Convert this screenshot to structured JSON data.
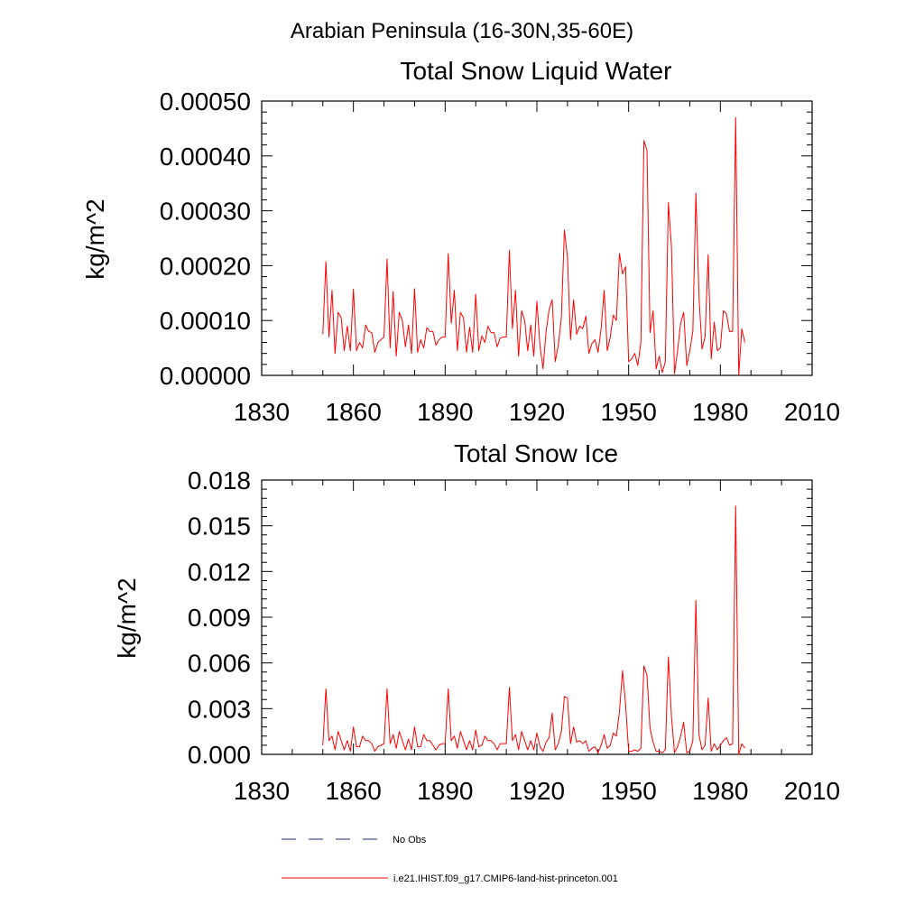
{
  "figure_title": "Arabian Peninsula (16-30N,35-60E)",
  "legend": {
    "entries": [
      {
        "label": "No Obs",
        "color": "#1f2a7a",
        "dash": true
      },
      {
        "label": "i.e21.IHIST.f09_g17.CMIP6-land-hist-princeton.001",
        "color": "#ff0000",
        "dash": false
      }
    ]
  },
  "chart_data": [
    {
      "type": "line",
      "title": "Total Snow Liquid Water",
      "ylabel": "kg/m^2",
      "xlabel": "",
      "xlim": [
        1830,
        2010
      ],
      "ylim": [
        0,
        0.0005
      ],
      "xticks": [
        "1830",
        "1860",
        "1890",
        "1920",
        "1950",
        "1980",
        "2010"
      ],
      "yticks": [
        "0.00000",
        "0.00010",
        "0.00020",
        "0.00030",
        "0.00040",
        "0.00050"
      ],
      "series": [
        {
          "name": "i.e21.IHIST.f09_g17.CMIP6-land-hist-princeton.001",
          "color": "#ff0000",
          "x_start": 1850,
          "x_step": 1,
          "values": [
            7.5e-05,
            0.000207,
            7e-05,
            0.000155,
            4e-05,
            0.000115,
            0.000105,
            4.5e-05,
            9e-05,
            4.5e-05,
            0.000157,
            4.5e-05,
            6e-05,
            5e-05,
            9.2e-05,
            8e-05,
            7.8e-05,
            4.2e-05,
            6e-05,
            6.5e-05,
            7e-05,
            0.000212,
            5e-05,
            0.000153,
            3.5e-05,
            0.000115,
            0.0001,
            5.2e-05,
            9.2e-05,
            4e-05,
            0.000158,
            4.2e-05,
            6.5e-05,
            5e-05,
            8.7e-05,
            8e-05,
            8e-05,
            5.5e-05,
            6.5e-05,
            7e-05,
            7e-05,
            0.000222,
            9.5e-05,
            0.000155,
            4.5e-05,
            0.000115,
            0.000105,
            4.2e-05,
            8.8e-05,
            4.2e-05,
            0.000148,
            4.5e-05,
            7.2e-05,
            6e-05,
            9e-05,
            7.8e-05,
            7.8e-05,
            5.2e-05,
            6.8e-05,
            7e-05,
            7e-05,
            0.000228,
            8.5e-05,
            0.000155,
            3.5e-05,
            0.000118,
            0.0001,
            4.5e-05,
            9.2e-05,
            3.5e-05,
            0.000135,
            5.5e-05,
            1.2e-05,
            8e-05,
            0.00012,
            0.000138,
            2.5e-05,
            5.5e-05,
            0.000105,
            0.000265,
            0.000215,
            6.5e-05,
            0.000138,
            7.5e-05,
            9e-05,
            8.5e-05,
            0.000108,
            4e-05,
            5.8e-05,
            6.5e-05,
            4.2e-05,
            8.5e-05,
            0.000155,
            4.5e-05,
            7e-05,
            0.00011,
            0.0001,
            0.000222,
            0.000185,
            0.000198,
            2.5e-05,
            3e-05,
            4e-05,
            1.8e-05,
            6e-05,
            0.000428,
            0.00041,
            7.8e-05,
            0.000118,
            1.2e-05,
            3.5e-05,
            5e-06,
            2.5e-05,
            0.000315,
            0.000235,
            3e-06,
            4.5e-05,
            9.5e-05,
            0.000115,
            1.8e-05,
            4.5e-05,
            8e-05,
            0.000332,
            0.000145,
            4.8e-05,
            7e-05,
            0.00022,
            3e-05,
            9.7e-05,
            4.5e-05,
            5e-05,
            0.000118,
            0.000112,
            8e-05,
            8e-05,
            0.00047,
            0.0,
            8.5e-05,
            6e-05
          ]
        }
      ]
    },
    {
      "type": "line",
      "title": "Total Snow Ice",
      "ylabel": "kg/m^2",
      "xlabel": "",
      "xlim": [
        1830,
        2010
      ],
      "ylim": [
        0,
        0.018
      ],
      "xticks": [
        "1830",
        "1860",
        "1890",
        "1920",
        "1950",
        "1980",
        "2010"
      ],
      "yticks": [
        "0.000",
        "0.003",
        "0.006",
        "0.009",
        "0.012",
        "0.015",
        "0.018"
      ],
      "series": [
        {
          "name": "i.e21.IHIST.f09_g17.CMIP6-land-hist-princeton.001",
          "color": "#ff0000",
          "x_start": 1850,
          "x_step": 1,
          "values": [
            0.0006,
            0.0043,
            0.0009,
            0.0012,
            0.0003,
            0.0015,
            0.0009,
            0.0003,
            0.0009,
            0.0002,
            0.0018,
            0.0005,
            0.0005,
            0.0012,
            0.0009,
            0.0009,
            0.0007,
            0.0002,
            0.0005,
            0.0006,
            0.0007,
            0.0043,
            0.0007,
            0.0013,
            0.0004,
            0.0015,
            0.0009,
            0.0003,
            0.001,
            0.0003,
            0.0018,
            0.0005,
            0.0005,
            0.0013,
            0.0009,
            0.0009,
            0.0006,
            0.0003,
            0.0006,
            0.0007,
            0.0007,
            0.0043,
            0.0009,
            0.0012,
            0.0004,
            0.0015,
            0.0009,
            0.0003,
            0.0009,
            0.0003,
            0.0016,
            0.0005,
            0.0006,
            0.0012,
            0.0009,
            0.0009,
            0.0007,
            0.0003,
            0.0007,
            0.0007,
            0.0007,
            0.0044,
            0.0009,
            0.0013,
            0.0003,
            0.0015,
            0.0009,
            0.0003,
            0.0009,
            0.0003,
            0.0014,
            0.0005,
            0.0002,
            0.0008,
            0.0011,
            0.0027,
            0.0003,
            0.0007,
            0.0015,
            0.0038,
            0.0037,
            0.0007,
            0.0018,
            0.0008,
            0.0009,
            0.0007,
            0.0009,
            0.0002,
            0.0004,
            0.0005,
            0.0001,
            0.0006,
            0.0013,
            0.0004,
            0.0006,
            0.0014,
            0.0012,
            0.0028,
            0.0055,
            0.0033,
            0.0002,
            0.0002,
            0.0003,
            0.0002,
            0.0004,
            0.0058,
            0.0052,
            0.0017,
            0.0008,
            0.0002,
            0.0002,
            0.0001,
            0.0003,
            0.0064,
            0.0025,
            0.0001,
            0.0005,
            0.0012,
            0.0021,
            0.0001,
            0.0002,
            0.0009,
            0.0101,
            0.0013,
            0.0003,
            0.0006,
            0.0037,
            0.0002,
            0.0007,
            0.0003,
            0.0006,
            0.0009,
            0.0011,
            0.0006,
            0.0007,
            0.0163,
            0.0,
            0.0007,
            0.0004
          ]
        }
      ]
    }
  ]
}
